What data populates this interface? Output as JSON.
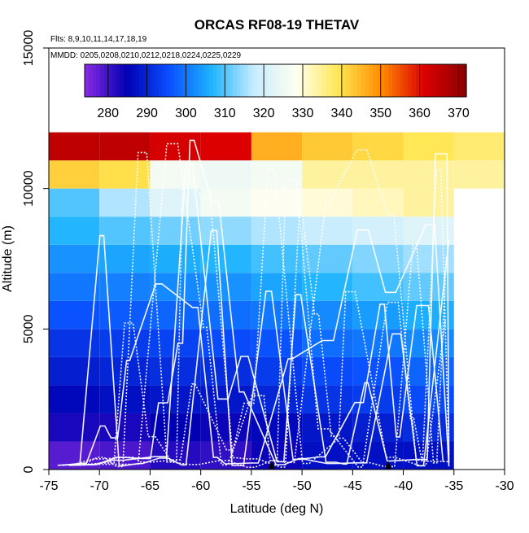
{
  "chart_data": {
    "type": "heatmap",
    "title": "ORCAS RF08-19 THETAV",
    "flights_note": "Flts: 8,9,10,11,14,17,18,19",
    "dates_note": "MMDD: 0205,0208,0210,0212,0218,0224,0225,0229",
    "xlabel": "Latitude (deg N)",
    "ylabel": "Altitude (m)",
    "xlim": [
      -75,
      -30
    ],
    "ylim": [
      0,
      15000
    ],
    "x_ticks": [
      -75,
      -70,
      -65,
      -60,
      -55,
      -50,
      -45,
      -40,
      -35,
      -30
    ],
    "y_ticks": [
      0,
      5000,
      10000,
      15000
    ],
    "colorbar": {
      "min": 274,
      "max": 372,
      "ticks": [
        280,
        290,
        300,
        310,
        320,
        330,
        340,
        350,
        360,
        370
      ],
      "stops": [
        "#8a2be2",
        "#0000b4",
        "#0a50ff",
        "#1eb4ff",
        "#c8ecff",
        "#fffff0",
        "#ffe650",
        "#ff8c00",
        "#dc0000",
        "#8b0000"
      ]
    },
    "lat_bin_edges": [
      -75,
      -70,
      -65,
      -60,
      -55,
      -50,
      -45,
      -40,
      -35,
      -30
    ],
    "alt_bin_size": 1000,
    "cells": [
      [
        278,
        279,
        282,
        281,
        284,
        287,
        287,
        287,
        null
      ],
      [
        283,
        283,
        285,
        284,
        286,
        288,
        289,
        291,
        null
      ],
      [
        286,
        287,
        288,
        288,
        290,
        292,
        293,
        295,
        null
      ],
      [
        289,
        290,
        291,
        291,
        293,
        295,
        296,
        298,
        null
      ],
      [
        292,
        293,
        294,
        295,
        296,
        299,
        300,
        302,
        null
      ],
      [
        296,
        297,
        298,
        299,
        300,
        302,
        304,
        306,
        null
      ],
      [
        300,
        301,
        302,
        303,
        305,
        307,
        309,
        311,
        null
      ],
      [
        303,
        305,
        306,
        307,
        309,
        311,
        313,
        315,
        null
      ],
      [
        307,
        310,
        312,
        314,
        316,
        318,
        320,
        322,
        null
      ],
      [
        310,
        316,
        322,
        326,
        328,
        330,
        332,
        334,
        null
      ],
      [
        342,
        340,
        326,
        325,
        326,
        334,
        334,
        334,
        334
      ],
      [
        365,
        365,
        362,
        361,
        346,
        343,
        341,
        339,
        337
      ]
    ],
    "flight_markers_lat": [
      -53,
      -41.5
    ]
  }
}
